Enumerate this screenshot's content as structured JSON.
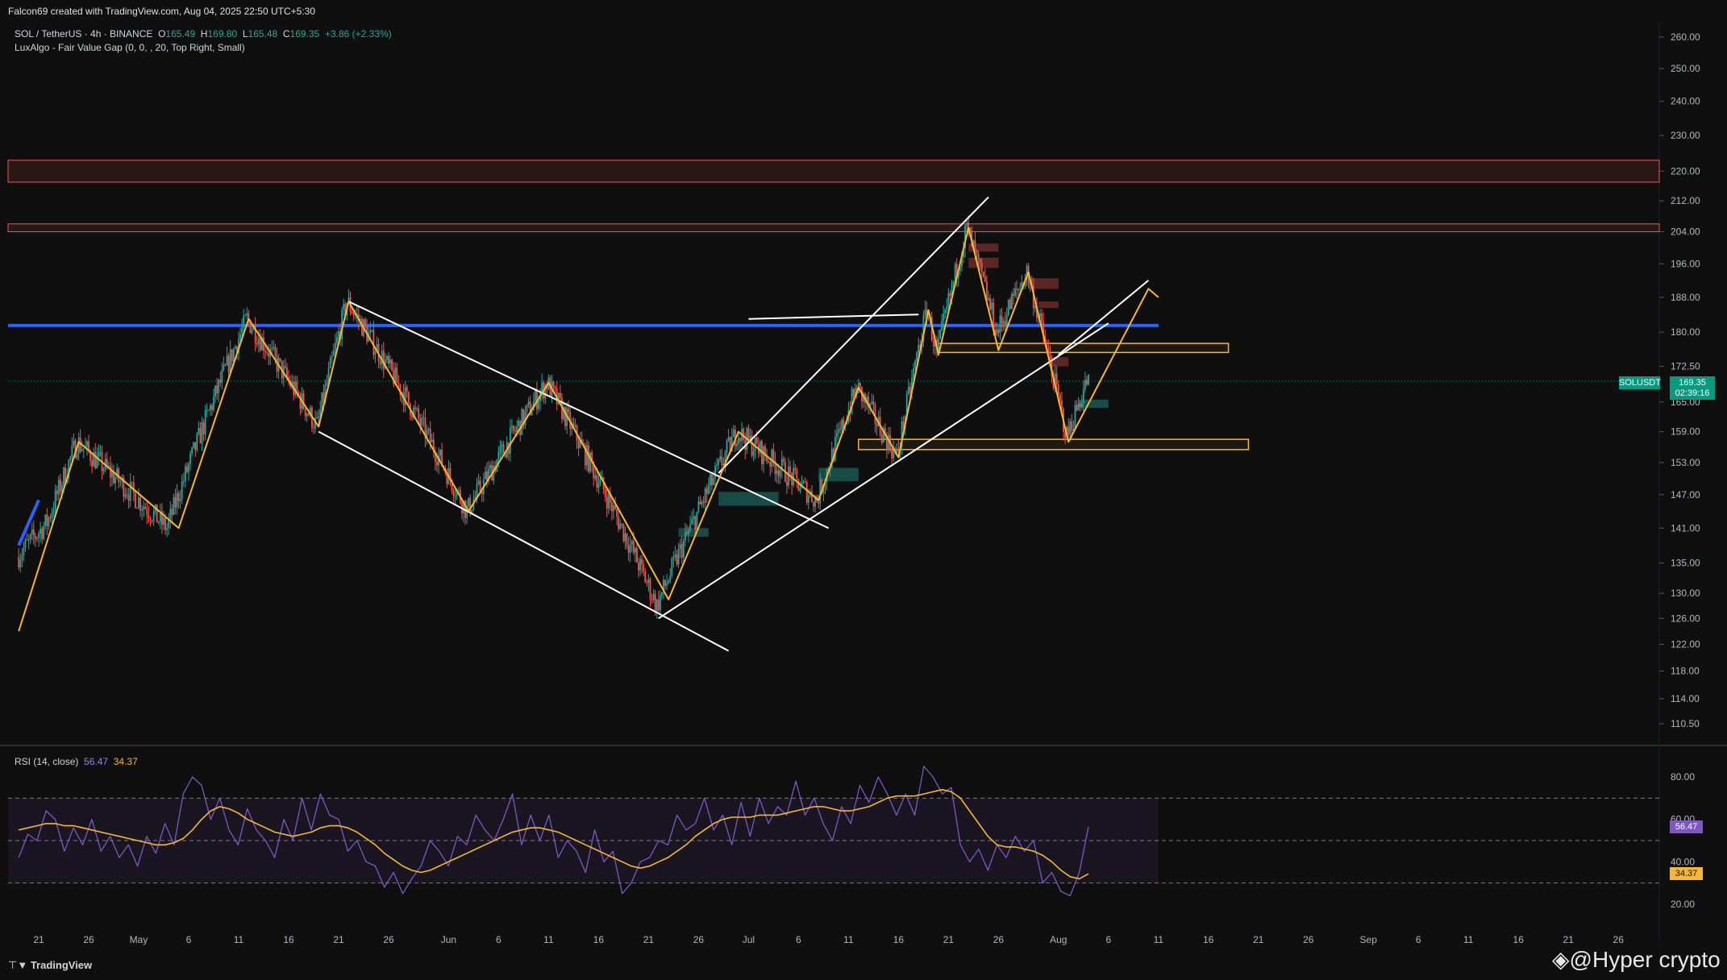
{
  "header": {
    "created_by": "Falcon69 created with TradingView.com, Aug 04, 2025 22:50 UTC+5:30",
    "symbol_line": "SOL / TetherUS · 4h · BINANCE",
    "ohlc": {
      "o_label": "O",
      "o": "165.49",
      "h_label": "H",
      "h": "169.80",
      "l_label": "L",
      "l": "165.48",
      "c_label": "C",
      "c": "169.35",
      "change": "+3.86 (+2.33%)"
    },
    "indicator": "LuxAlgo - Fair Value Gap (0, 0, , 20, Top Right, Small)"
  },
  "price_label": {
    "symbol": "SOLUSDT",
    "price": "169.35",
    "countdown": "02:39:16"
  },
  "rsi_legend": {
    "name": "RSI (14, close)",
    "rsi": "56.47",
    "ma": "34.37"
  },
  "branding": {
    "tradingview": "TradingView",
    "watermark": "@Hyper crypto"
  },
  "colors": {
    "bg": "#0f0f0f",
    "up": "#26a69a",
    "down": "#ef5350",
    "zigzag": "#f7b731",
    "trendline": "#ffffff",
    "blue_line": "#2962ff",
    "resistance_zone": "#ef5350",
    "rsi": "#7e57c2",
    "rsi_ma": "#f7b731"
  },
  "chart_data": [
    {
      "type": "candlestick",
      "title": "SOL / TetherUS · 4h · BINANCE",
      "y_scale": "log",
      "ylim": [
        106,
        265
      ],
      "y_ticks": [
        "260.00",
        "250.00",
        "240.00",
        "230.00",
        "220.00",
        "212.00",
        "204.00",
        "196.00",
        "188.00",
        "180.00",
        "172.50",
        "165.00",
        "159.00",
        "153.00",
        "147.00",
        "141.00",
        "135.00",
        "130.00",
        "126.00",
        "122.00",
        "118.00",
        "114.00",
        "110.50"
      ],
      "x_ticks": [
        "21",
        "26",
        "May",
        "6",
        "11",
        "16",
        "21",
        "26",
        "Jun",
        "6",
        "11",
        "16",
        "21",
        "26",
        "Jul",
        "6",
        "11",
        "16",
        "21",
        "26",
        "Aug",
        "6",
        "11",
        "16",
        "21",
        "26",
        "Sep",
        "6",
        "11",
        "16",
        "21",
        "26"
      ],
      "x_range": [
        "2025-04-19",
        "2025-09-29"
      ],
      "price_path": [
        [
          "2025-04-19",
          136
        ],
        [
          "2025-04-22",
          142
        ],
        [
          "2025-04-25",
          157
        ],
        [
          "2025-05-04",
          141
        ],
        [
          "2025-05-12",
          183
        ],
        [
          "2025-05-19",
          160
        ],
        [
          "2025-05-22",
          187
        ],
        [
          "2025-06-03",
          144
        ],
        [
          "2025-06-11",
          169
        ],
        [
          "2025-06-22",
          128
        ],
        [
          "2025-06-30",
          159
        ],
        [
          "2025-07-08",
          146
        ],
        [
          "2025-07-12",
          168
        ],
        [
          "2025-07-16",
          154
        ],
        [
          "2025-07-19",
          185
        ],
        [
          "2025-07-20",
          175
        ],
        [
          "2025-07-23",
          205
        ],
        [
          "2025-07-26",
          180
        ],
        [
          "2025-07-29",
          194
        ],
        [
          "2025-08-02",
          158
        ],
        [
          "2025-08-04",
          169.35
        ]
      ],
      "last_price": 169.35,
      "horizontal_levels": [
        {
          "name": "blue-level",
          "value": 181.5
        },
        {
          "name": "resistance-zone-1",
          "from": 217,
          "to": 223
        },
        {
          "name": "resistance-zone-2",
          "from": 204,
          "to": 206
        },
        {
          "name": "support-zone-1",
          "from": 175.5,
          "to": 177.5,
          "start": "2025-07-20",
          "end": "2025-08-18"
        },
        {
          "name": "support-zone-2",
          "from": 155.5,
          "to": 157.5,
          "start": "2025-07-12",
          "end": "2025-08-20"
        }
      ],
      "zigzag": [
        [
          "2025-04-19",
          124
        ],
        [
          "2025-04-25",
          157
        ],
        [
          "2025-05-05",
          141
        ],
        [
          "2025-05-12",
          183
        ],
        [
          "2025-05-19",
          160
        ],
        [
          "2025-05-22",
          187
        ],
        [
          "2025-06-03",
          144
        ],
        [
          "2025-06-11",
          169
        ],
        [
          "2025-06-23",
          129
        ],
        [
          "2025-06-30",
          159
        ],
        [
          "2025-07-08",
          146
        ],
        [
          "2025-07-12",
          168
        ],
        [
          "2025-07-16",
          154
        ],
        [
          "2025-07-19",
          185
        ],
        [
          "2025-07-20",
          175
        ],
        [
          "2025-07-23",
          205
        ],
        [
          "2025-07-26",
          176
        ],
        [
          "2025-07-29",
          194
        ],
        [
          "2025-08-02",
          157
        ],
        [
          "2025-08-10",
          190
        ],
        [
          "2025-08-11",
          188
        ]
      ],
      "trendlines": [
        [
          [
            "2025-05-22",
            187
          ],
          [
            "2025-07-09",
            141
          ]
        ],
        [
          [
            "2025-05-19",
            159
          ],
          [
            "2025-06-29",
            121
          ]
        ],
        [
          [
            "2025-06-22",
            126
          ],
          [
            "2025-08-06",
            182
          ]
        ],
        [
          [
            "2025-06-28",
            151
          ],
          [
            "2025-07-25",
            213
          ]
        ],
        [
          [
            "2025-07-01",
            183
          ],
          [
            "2025-07-18",
            184
          ]
        ],
        [
          [
            "2025-08-01",
            175
          ],
          [
            "2025-08-10",
            192
          ]
        ]
      ]
    },
    {
      "type": "line",
      "title": "RSI (14, close)",
      "ylim": [
        15,
        88
      ],
      "y_ticks": [
        "80.00",
        "60.00",
        "40.00",
        "20.00"
      ],
      "bands": [
        30,
        50,
        70
      ],
      "series": [
        {
          "name": "RSI",
          "values": [
            42,
            53,
            50,
            64,
            60,
            45,
            56,
            48,
            60,
            45,
            52,
            42,
            48,
            38,
            52,
            44,
            58,
            48,
            72,
            80,
            76,
            60,
            70,
            55,
            48,
            65,
            55,
            50,
            42,
            60,
            50,
            70,
            55,
            72,
            62,
            60,
            45,
            50,
            40,
            38,
            28,
            35,
            25,
            32,
            38,
            50,
            45,
            38,
            52,
            48,
            62,
            55,
            50,
            60,
            72,
            48,
            62,
            50,
            62,
            42,
            50,
            45,
            35,
            55,
            40,
            45,
            25,
            30,
            40,
            42,
            50,
            48,
            62,
            55,
            58,
            70,
            55,
            62,
            48,
            68,
            52,
            70,
            58,
            66,
            62,
            78,
            62,
            70,
            58,
            50,
            66,
            58,
            76,
            68,
            80,
            72,
            62,
            72,
            62,
            85,
            80,
            72,
            75,
            48,
            40,
            46,
            36,
            48,
            42,
            52,
            45,
            50,
            30,
            35,
            26,
            24,
            35,
            56.47
          ]
        },
        {
          "name": "MA",
          "values": [
            55,
            56,
            57,
            58,
            58,
            57,
            57,
            56,
            55,
            54,
            53,
            52,
            51,
            50,
            49,
            48,
            48,
            49,
            51,
            55,
            60,
            64,
            66,
            65,
            63,
            60,
            58,
            56,
            54,
            53,
            52,
            53,
            54,
            56,
            57,
            57,
            56,
            54,
            51,
            48,
            44,
            41,
            38,
            36,
            35,
            36,
            38,
            40,
            42,
            44,
            46,
            48,
            50,
            52,
            54,
            55,
            56,
            56,
            55,
            54,
            52,
            50,
            48,
            46,
            44,
            42,
            40,
            38,
            37,
            38,
            40,
            42,
            45,
            48,
            52,
            55,
            58,
            60,
            61,
            61,
            61,
            62,
            62,
            62,
            63,
            64,
            65,
            66,
            66,
            65,
            64,
            64,
            65,
            66,
            68,
            70,
            71,
            71,
            71,
            72,
            73,
            74,
            73,
            70,
            64,
            58,
            52,
            48,
            47,
            47,
            46,
            45,
            43,
            40,
            36,
            33,
            32,
            34.37
          ]
        }
      ]
    }
  ]
}
